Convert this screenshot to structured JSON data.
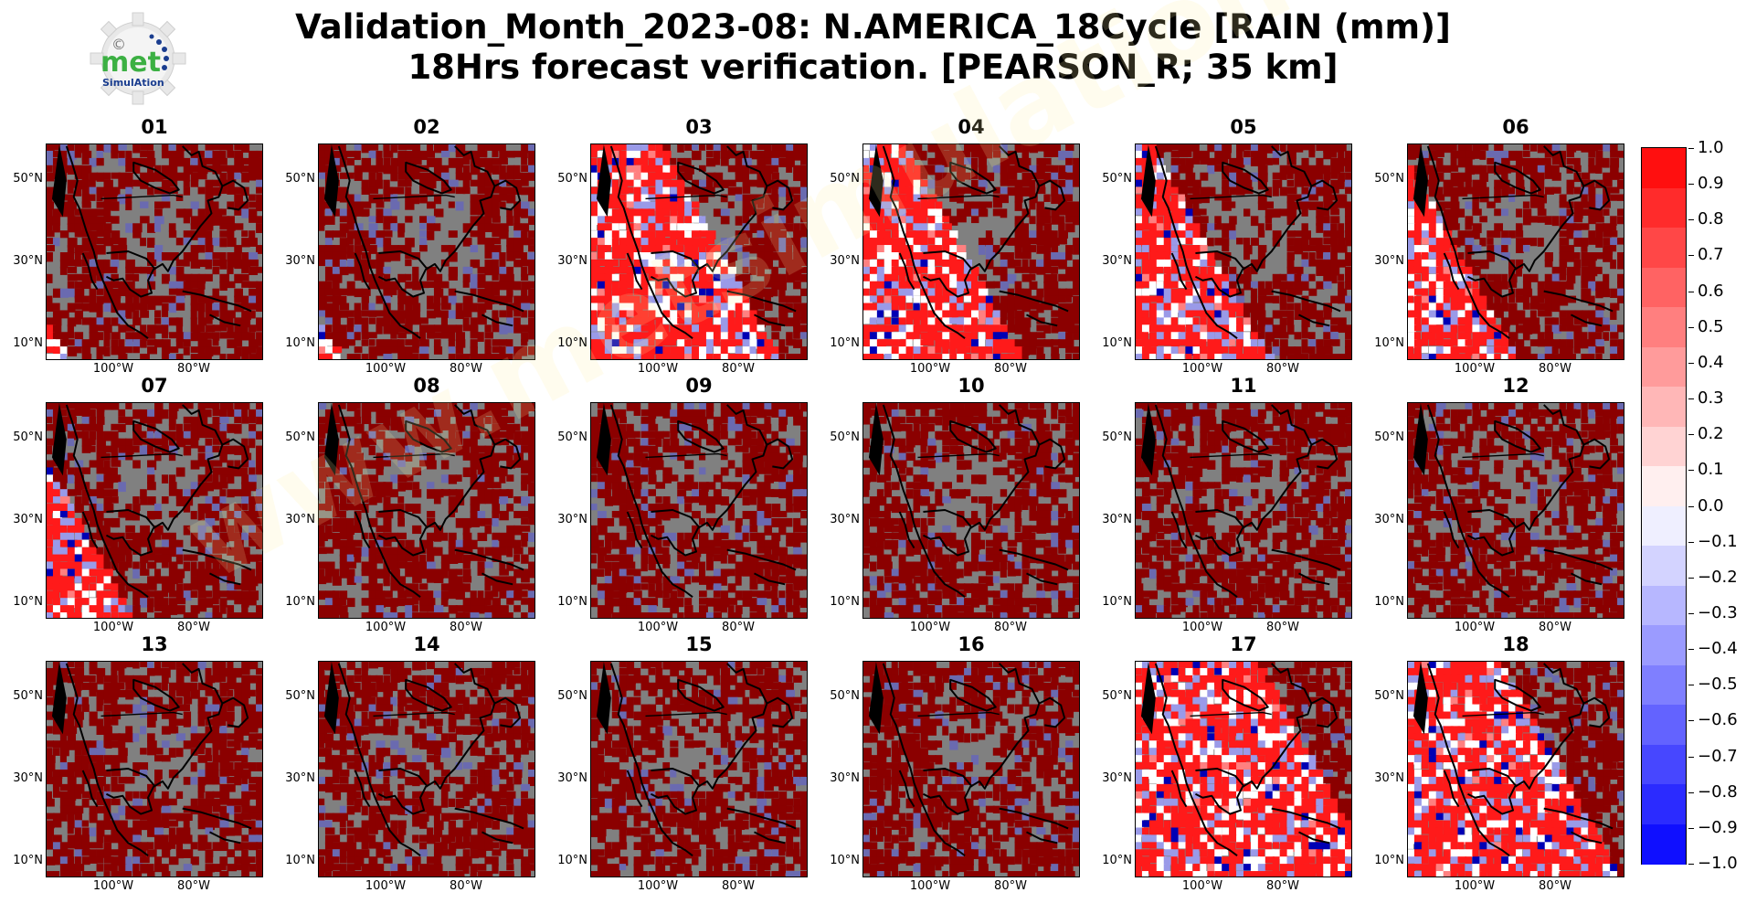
{
  "title": {
    "line1": "Validation_Month_2023-08: N.AMERICA_18Cycle [RAIN (mm)]",
    "line2": "18Hrs forecast verification.  [PEARSON_R; 35 km]"
  },
  "logo": {
    "icon": "gear-icon",
    "main_text": "met",
    "sub_text": "SimulAtion",
    "copyright": "©"
  },
  "watermark": "www.metsimulation.com",
  "axes": {
    "lat_labels": [
      "50°N",
      "30°N",
      "10°N"
    ],
    "lon_labels": [
      "100°W",
      "80°W"
    ]
  },
  "panels": [
    {
      "title": "01",
      "sweep": -1.0
    },
    {
      "title": "02",
      "sweep": -1.0
    },
    {
      "title": "03",
      "sweep": 0.72
    },
    {
      "title": "04",
      "sweep": 0.42
    },
    {
      "title": "05",
      "sweep": 0.16
    },
    {
      "title": "06",
      "sweep": -0.1
    },
    {
      "title": "07",
      "sweep": -0.34
    },
    {
      "title": "08",
      "sweep": -2.0
    },
    {
      "title": "09",
      "sweep": -2.0
    },
    {
      "title": "10",
      "sweep": -2.0
    },
    {
      "title": "11",
      "sweep": -2.0
    },
    {
      "title": "12",
      "sweep": -2.0
    },
    {
      "title": "13",
      "sweep": -2.0
    },
    {
      "title": "14",
      "sweep": -2.0
    },
    {
      "title": "15",
      "sweep": -2.0
    },
    {
      "title": "16",
      "sweep": -2.0
    },
    {
      "title": "17",
      "sweep": 1.26
    },
    {
      "title": "18",
      "sweep": 0.96
    }
  ],
  "colorbar": {
    "min": -1.0,
    "max": 1.0,
    "tick_labels": [
      "1.0",
      "0.9",
      "0.8",
      "0.7",
      "0.6",
      "0.5",
      "0.4",
      "0.3",
      "0.2",
      "0.1",
      "0.0",
      "−0.1",
      "−0.2",
      "−0.3",
      "−0.4",
      "−0.5",
      "−0.6",
      "−0.7",
      "−0.8",
      "−0.9",
      "−1.0"
    ],
    "colors": [
      "#ff0f0f",
      "#ff2b2b",
      "#ff4747",
      "#ff6363",
      "#ff7f7f",
      "#ff9b9b",
      "#ffb7b7",
      "#ffd3d3",
      "#ffefef",
      "#efefff",
      "#d3d3ff",
      "#b7b7ff",
      "#9b9bff",
      "#7f7fff",
      "#6363ff",
      "#4747ff",
      "#2b2bff",
      "#0f0fff"
    ]
  },
  "colors": {
    "ocean_gray": "#808080",
    "dark_red": "#8b0000",
    "bright_red": "#ff1a1a",
    "light_blue": "#9a9ae8",
    "dark_blue": "#0000b4",
    "white": "#ffffff",
    "logo_green": "#3cb043",
    "logo_blue": "#1a3d8f"
  }
}
